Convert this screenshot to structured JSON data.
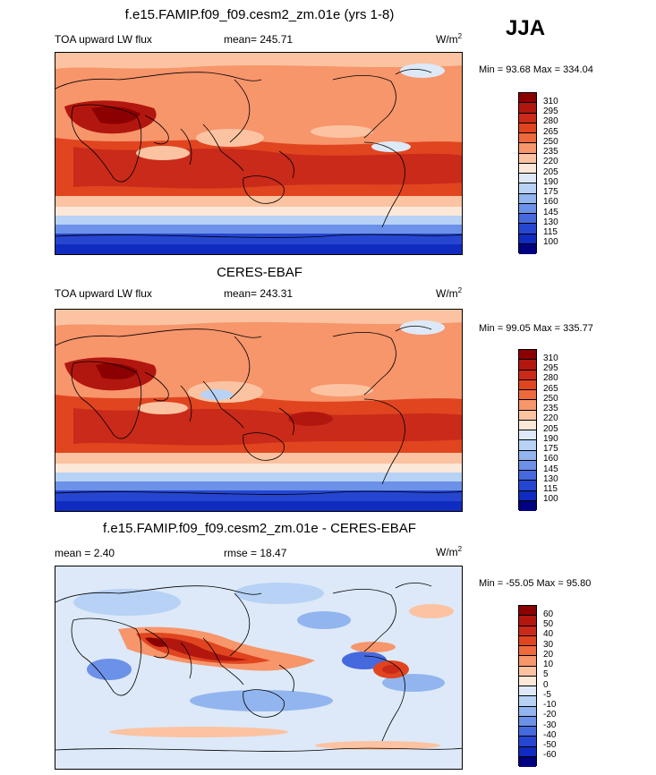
{
  "season": "JJA",
  "panels": [
    {
      "title": "f.e15.FAMIP.f09_f09.cesm2_zm.01e (yrs 1-8)",
      "left_label": "TOA upward LW flux",
      "center_label": "mean= 245.71",
      "units_base": "W/m",
      "units_exp": "2",
      "minmax": "Min =  93.68 Max = 334.04",
      "colorbar": {
        "levels": [
          "310",
          "295",
          "280",
          "265",
          "250",
          "235",
          "220",
          "205",
          "190",
          "175",
          "160",
          "145",
          "130",
          "115",
          "100"
        ],
        "colors": [
          "#8b0000",
          "#b2170f",
          "#c92a1a",
          "#e0451f",
          "#ee6a3c",
          "#f7956b",
          "#fbc3a1",
          "#fbe8d8",
          "#dde9f8",
          "#b7d2f5",
          "#92b5ef",
          "#6c91e8",
          "#4669de",
          "#2646d1",
          "#102bbf",
          "#000080"
        ]
      }
    },
    {
      "title": "CERES-EBAF",
      "left_label": "TOA upward LW flux",
      "center_label": "mean= 243.31",
      "units_base": "W/m",
      "units_exp": "2",
      "minmax": "Min =  99.05 Max = 335.77",
      "colorbar": {
        "levels": [
          "310",
          "295",
          "280",
          "265",
          "250",
          "235",
          "220",
          "205",
          "190",
          "175",
          "160",
          "145",
          "130",
          "115",
          "100"
        ],
        "colors": [
          "#8b0000",
          "#b2170f",
          "#c92a1a",
          "#e0451f",
          "#ee6a3c",
          "#f7956b",
          "#fbc3a1",
          "#fbe8d8",
          "#dde9f8",
          "#b7d2f5",
          "#92b5ef",
          "#6c91e8",
          "#4669de",
          "#2646d1",
          "#102bbf",
          "#000080"
        ]
      }
    },
    {
      "title": "f.e15.FAMIP.f09_f09.cesm2_zm.01e - CERES-EBAF",
      "left_label": "mean =  2.40",
      "center_label": "rmse =  18.47",
      "units_base": "W/m",
      "units_exp": "2",
      "minmax": "Min = -55.05 Max =  95.80",
      "colorbar": {
        "levels": [
          "60",
          "50",
          "40",
          "30",
          "20",
          "10",
          "5",
          "0",
          "-5",
          "-10",
          "-20",
          "-30",
          "-40",
          "-50",
          "-60"
        ],
        "colors": [
          "#8b0000",
          "#b2170f",
          "#c92a1a",
          "#e0451f",
          "#ee6a3c",
          "#f7956b",
          "#fbc3a1",
          "#fbe8d8",
          "#dde9f8",
          "#b7d2f5",
          "#92b5ef",
          "#6c91e8",
          "#4669de",
          "#2646d1",
          "#102bbf",
          "#000080"
        ]
      }
    }
  ]
}
